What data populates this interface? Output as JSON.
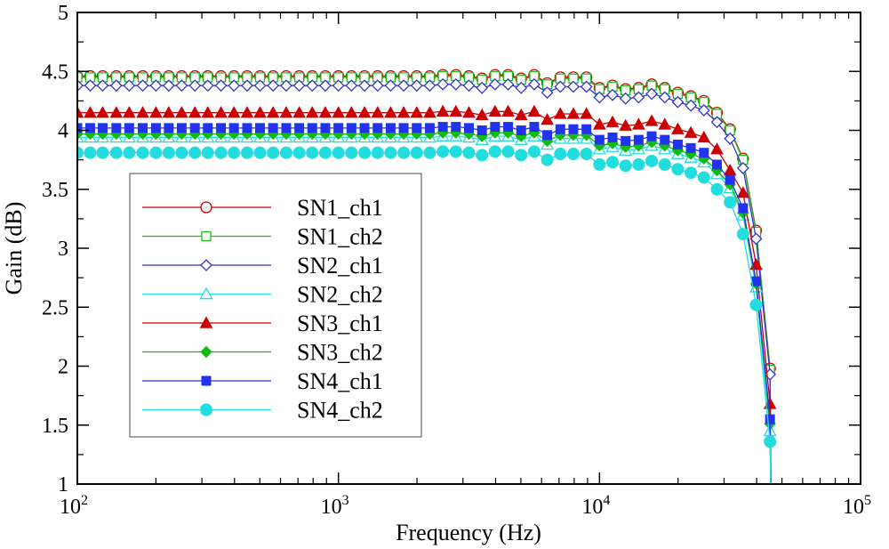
{
  "chart_data": {
    "type": "line",
    "title": "",
    "xlabel": "Frequency (Hz)",
    "ylabel": "Gain (dB)",
    "xscale": "log",
    "xlim": [
      100,
      100000
    ],
    "ylim": [
      1,
      5
    ],
    "x_ticks": [
      {
        "value": 100,
        "base": "10",
        "exp": "2"
      },
      {
        "value": 1000,
        "base": "10",
        "exp": "3"
      },
      {
        "value": 10000,
        "base": "10",
        "exp": "4"
      },
      {
        "value": 100000,
        "base": "10",
        "exp": "5"
      }
    ],
    "y_ticks": [
      {
        "value": 1,
        "label": "1"
      },
      {
        "value": 1.5,
        "label": "1.5"
      },
      {
        "value": 2,
        "label": "2"
      },
      {
        "value": 2.5,
        "label": "2.5"
      },
      {
        "value": 3,
        "label": "3"
      },
      {
        "value": 3.5,
        "label": "3.5"
      },
      {
        "value": 4,
        "label": "4"
      },
      {
        "value": 4.5,
        "label": "4.5"
      },
      {
        "value": 5,
        "label": "5"
      }
    ],
    "grid": false,
    "legend_position": "left-center",
    "x": [
      100,
      112,
      125,
      141,
      158,
      178,
      200,
      224,
      251,
      282,
      316,
      355,
      398,
      447,
      501,
      562,
      631,
      708,
      794,
      891,
      1000,
      1122,
      1259,
      1413,
      1585,
      1778,
      1995,
      2239,
      2512,
      2818,
      3162,
      3548,
      3981,
      4467,
      5012,
      5623,
      6310,
      7079,
      7943,
      8913,
      10000,
      11220,
      12589,
      14125,
      15849,
      17783,
      19953,
      22387,
      25119,
      28184,
      31623,
      35481,
      39811,
      45000
    ],
    "series": [
      {
        "name": "SN1_ch1",
        "color": "#cc0000",
        "marker": "circle-open",
        "values": [
          4.46,
          4.46,
          4.46,
          4.46,
          4.46,
          4.46,
          4.46,
          4.46,
          4.46,
          4.46,
          4.46,
          4.46,
          4.46,
          4.46,
          4.46,
          4.46,
          4.46,
          4.46,
          4.46,
          4.46,
          4.46,
          4.46,
          4.46,
          4.46,
          4.46,
          4.46,
          4.46,
          4.46,
          4.47,
          4.47,
          4.46,
          4.44,
          4.47,
          4.47,
          4.44,
          4.47,
          4.4,
          4.45,
          4.45,
          4.45,
          4.36,
          4.38,
          4.35,
          4.36,
          4.39,
          4.36,
          4.32,
          4.29,
          4.25,
          4.15,
          4.01,
          3.76,
          3.15,
          1.98
        ]
      },
      {
        "name": "SN1_ch2",
        "color": "#22bb22",
        "marker": "square-open",
        "values": [
          4.45,
          4.45,
          4.45,
          4.45,
          4.45,
          4.45,
          4.45,
          4.45,
          4.45,
          4.45,
          4.45,
          4.45,
          4.45,
          4.45,
          4.45,
          4.45,
          4.45,
          4.45,
          4.45,
          4.45,
          4.45,
          4.45,
          4.45,
          4.45,
          4.45,
          4.45,
          4.45,
          4.45,
          4.46,
          4.46,
          4.45,
          4.43,
          4.46,
          4.46,
          4.43,
          4.46,
          4.39,
          4.44,
          4.44,
          4.44,
          4.35,
          4.37,
          4.34,
          4.35,
          4.38,
          4.35,
          4.31,
          4.28,
          4.24,
          4.14,
          4.0,
          3.75,
          3.14,
          1.97
        ]
      },
      {
        "name": "SN2_ch1",
        "color": "#3333cc",
        "marker": "diamond-open",
        "values": [
          4.38,
          4.38,
          4.38,
          4.38,
          4.38,
          4.38,
          4.38,
          4.38,
          4.38,
          4.38,
          4.38,
          4.38,
          4.38,
          4.38,
          4.38,
          4.38,
          4.38,
          4.38,
          4.38,
          4.38,
          4.38,
          4.38,
          4.38,
          4.38,
          4.38,
          4.38,
          4.38,
          4.38,
          4.39,
          4.39,
          4.38,
          4.36,
          4.39,
          4.39,
          4.36,
          4.39,
          4.32,
          4.37,
          4.37,
          4.37,
          4.28,
          4.3,
          4.27,
          4.28,
          4.31,
          4.28,
          4.24,
          4.21,
          4.17,
          4.07,
          3.93,
          3.68,
          3.08,
          1.93
        ]
      },
      {
        "name": "SN2_ch2",
        "color": "#22dddd",
        "marker": "triangle-open",
        "values": [
          3.94,
          3.94,
          3.94,
          3.94,
          3.94,
          3.94,
          3.94,
          3.94,
          3.94,
          3.94,
          3.94,
          3.94,
          3.94,
          3.94,
          3.94,
          3.94,
          3.94,
          3.94,
          3.94,
          3.94,
          3.94,
          3.94,
          3.94,
          3.94,
          3.94,
          3.94,
          3.94,
          3.94,
          3.95,
          3.95,
          3.94,
          3.92,
          3.95,
          3.95,
          3.92,
          3.95,
          3.88,
          3.93,
          3.93,
          3.93,
          3.84,
          3.86,
          3.83,
          3.84,
          3.87,
          3.84,
          3.8,
          3.77,
          3.73,
          3.63,
          3.51,
          3.28,
          2.67,
          1.45
        ]
      },
      {
        "name": "SN3_ch1",
        "color": "#cc0000",
        "marker": "triangle-filled",
        "values": [
          4.15,
          4.15,
          4.15,
          4.15,
          4.15,
          4.15,
          4.15,
          4.15,
          4.15,
          4.15,
          4.15,
          4.15,
          4.15,
          4.15,
          4.15,
          4.15,
          4.15,
          4.15,
          4.15,
          4.15,
          4.15,
          4.15,
          4.15,
          4.15,
          4.15,
          4.15,
          4.15,
          4.15,
          4.16,
          4.16,
          4.15,
          4.13,
          4.16,
          4.16,
          4.13,
          4.16,
          4.09,
          4.14,
          4.14,
          4.14,
          4.05,
          4.07,
          4.04,
          4.05,
          4.08,
          4.05,
          4.01,
          3.98,
          3.94,
          3.84,
          3.66,
          3.47,
          2.86,
          1.68
        ]
      },
      {
        "name": "SN3_ch2",
        "color": "#11bb11",
        "marker": "diamond-filled",
        "values": [
          3.97,
          3.97,
          3.97,
          3.97,
          3.97,
          3.97,
          3.97,
          3.97,
          3.97,
          3.97,
          3.97,
          3.97,
          3.97,
          3.97,
          3.97,
          3.97,
          3.97,
          3.97,
          3.97,
          3.97,
          3.97,
          3.97,
          3.97,
          3.97,
          3.97,
          3.97,
          3.97,
          3.97,
          3.98,
          3.98,
          3.97,
          3.95,
          3.98,
          3.98,
          3.95,
          3.98,
          3.91,
          3.96,
          3.96,
          3.96,
          3.87,
          3.89,
          3.86,
          3.87,
          3.9,
          3.87,
          3.83,
          3.8,
          3.76,
          3.66,
          3.54,
          3.3,
          2.7,
          1.51
        ]
      },
      {
        "name": "SN4_ch1",
        "color": "#2233ee",
        "marker": "square-filled",
        "values": [
          4.02,
          4.02,
          4.02,
          4.02,
          4.02,
          4.02,
          4.02,
          4.02,
          4.02,
          4.02,
          4.02,
          4.02,
          4.02,
          4.02,
          4.02,
          4.02,
          4.02,
          4.02,
          4.02,
          4.02,
          4.02,
          4.02,
          4.02,
          4.02,
          4.02,
          4.02,
          4.02,
          4.02,
          4.03,
          4.03,
          4.02,
          4.0,
          4.03,
          4.03,
          4.0,
          4.03,
          3.96,
          4.01,
          4.01,
          4.01,
          3.92,
          3.94,
          3.91,
          3.92,
          3.95,
          3.92,
          3.88,
          3.85,
          3.81,
          3.71,
          3.58,
          3.34,
          2.72,
          1.55
        ]
      },
      {
        "name": "SN4_ch2",
        "color": "#22dddd",
        "marker": "circle-filled",
        "values": [
          3.81,
          3.81,
          3.81,
          3.81,
          3.81,
          3.81,
          3.81,
          3.81,
          3.81,
          3.81,
          3.81,
          3.81,
          3.81,
          3.81,
          3.81,
          3.81,
          3.81,
          3.81,
          3.81,
          3.81,
          3.81,
          3.81,
          3.81,
          3.81,
          3.81,
          3.81,
          3.81,
          3.81,
          3.82,
          3.82,
          3.81,
          3.79,
          3.82,
          3.82,
          3.79,
          3.82,
          3.75,
          3.8,
          3.8,
          3.8,
          3.71,
          3.73,
          3.7,
          3.71,
          3.74,
          3.71,
          3.67,
          3.64,
          3.6,
          3.5,
          3.39,
          3.12,
          2.52,
          1.36
        ]
      }
    ]
  }
}
